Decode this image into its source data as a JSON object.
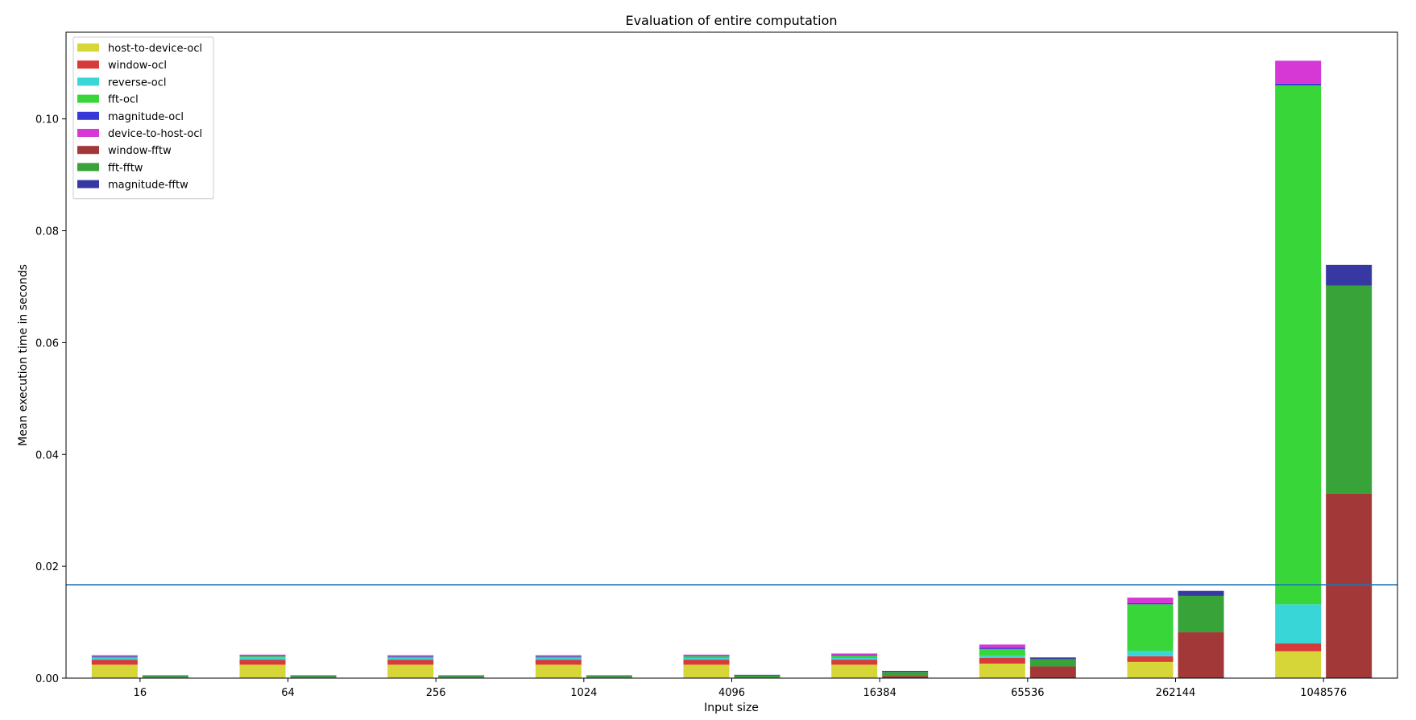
{
  "chart_data": {
    "type": "bar",
    "stacked": true,
    "grouped": true,
    "title": "Evaluation of entire computation",
    "xlabel": "Input size",
    "ylabel": "Mean execution time in seconds",
    "categories": [
      "16",
      "64",
      "256",
      "1024",
      "4096",
      "16384",
      "65536",
      "262144",
      "1048576"
    ],
    "ylim": [
      0,
      0.1155
    ],
    "yticks": [
      0.0,
      0.02,
      0.04,
      0.06,
      0.08,
      0.1
    ],
    "ytick_labels": [
      "0.00",
      "0.02",
      "0.04",
      "0.06",
      "0.08",
      "0.10"
    ],
    "grid": false,
    "legend_position": "top-left",
    "reference_line": {
      "value": 0.0167,
      "color": "#1f77b4"
    },
    "groups": [
      {
        "name": "ocl",
        "series": [
          {
            "name": "host-to-device-ocl",
            "color": "#d6d638",
            "values": [
              0.0024,
              0.0024,
              0.0024,
              0.0024,
              0.0024,
              0.0024,
              0.0026,
              0.0029,
              0.0048
            ]
          },
          {
            "name": "window-ocl",
            "color": "#d83a3a",
            "values": [
              0.0009,
              0.0009,
              0.0009,
              0.0009,
              0.0009,
              0.0009,
              0.001,
              0.001,
              0.0014
            ]
          },
          {
            "name": "reverse-ocl",
            "color": "#38d6d6",
            "values": [
              0.0003,
              0.0004,
              0.0003,
              0.0003,
              0.0003,
              0.0003,
              0.0004,
              0.001,
              0.007
            ]
          },
          {
            "name": "fft-ocl",
            "color": "#38d638",
            "values": [
              0.0002,
              0.0002,
              0.0002,
              0.0002,
              0.0003,
              0.0004,
              0.0012,
              0.0083,
              0.0928
            ]
          },
          {
            "name": "magnitude-ocl",
            "color": "#3838d6",
            "values": [
              0.0001,
              0.0001,
              0.0001,
              0.0001,
              0.0001,
              0.0001,
              0.0002,
              0.0002,
              0.0003
            ]
          },
          {
            "name": "device-to-host-ocl",
            "color": "#d638d6",
            "values": [
              0.0002,
              0.0002,
              0.0002,
              0.0002,
              0.0002,
              0.0003,
              0.0006,
              0.001,
              0.0041
            ]
          }
        ]
      },
      {
        "name": "fftw",
        "series": [
          {
            "name": "window-fftw",
            "color": "#a33838",
            "values": [
              0.0001,
              0.0001,
              0.0001,
              0.0001,
              0.0001,
              0.0004,
              0.0021,
              0.0082,
              0.033
            ]
          },
          {
            "name": "fft-fftw",
            "color": "#38a338",
            "values": [
              0.0003,
              0.0003,
              0.0003,
              0.0003,
              0.0004,
              0.0007,
              0.0013,
              0.0065,
              0.0372
            ]
          },
          {
            "name": "magnitude-fftw",
            "color": "#3838a3",
            "values": [
              0.0001,
              0.0001,
              0.0001,
              0.0001,
              0.0001,
              0.0002,
              0.0003,
              0.0009,
              0.0037
            ]
          }
        ]
      }
    ]
  }
}
